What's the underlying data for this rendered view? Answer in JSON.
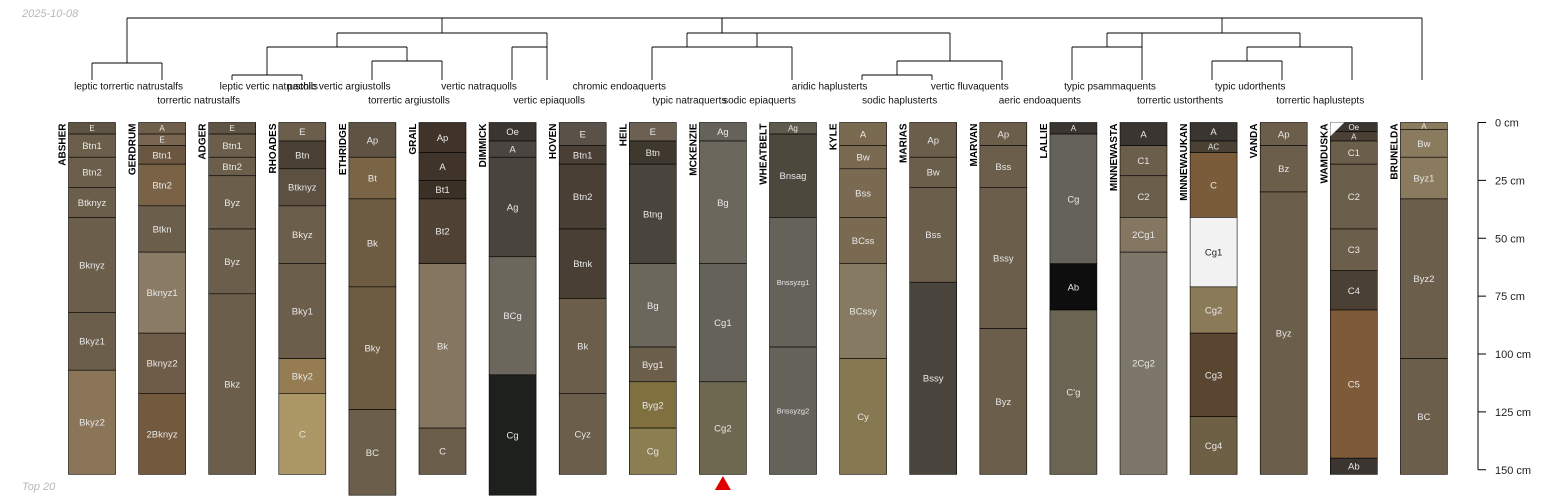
{
  "date": "2025-10-08",
  "footer": "Top 20",
  "axis": {
    "unit": "cm",
    "depth_max": 150,
    "ticks": [
      {
        "depth": 0,
        "label": "0 cm"
      },
      {
        "depth": 25,
        "label": "25 cm"
      },
      {
        "depth": 50,
        "label": "50 cm"
      },
      {
        "depth": 75,
        "label": "75 cm"
      },
      {
        "depth": 100,
        "label": "100 cm"
      },
      {
        "depth": 125,
        "label": "125 cm"
      },
      {
        "depth": 150,
        "label": "150 cm"
      }
    ]
  },
  "marker": {
    "profile": "MCKENZIE",
    "color": "#e00000"
  },
  "profiles": [
    {
      "name": "ABSHER",
      "horizons": [
        {
          "name": "E",
          "top": 0,
          "bottom": 5,
          "color": "#5f5444"
        },
        {
          "name": "Btn1",
          "top": 5,
          "bottom": 15,
          "color": "#6b5e4a"
        },
        {
          "name": "Btn2",
          "top": 15,
          "bottom": 28,
          "color": "#6b5e4a"
        },
        {
          "name": "Btknyz",
          "top": 28,
          "bottom": 41,
          "color": "#6b5e4a"
        },
        {
          "name": "Bknyz",
          "top": 41,
          "bottom": 82,
          "color": "#6b5e4a"
        },
        {
          "name": "Bkyz1",
          "top": 82,
          "bottom": 107,
          "color": "#6b5e4a"
        },
        {
          "name": "Bkyz2",
          "top": 107,
          "bottom": 152,
          "color": "#8b7558"
        }
      ]
    },
    {
      "name": "GERDRUM",
      "horizons": [
        {
          "name": "A",
          "top": 0,
          "bottom": 5,
          "color": "#6f5e4a"
        },
        {
          "name": "E",
          "top": 5,
          "bottom": 10,
          "color": "#7a6650"
        },
        {
          "name": "Btn1",
          "top": 10,
          "bottom": 18,
          "color": "#6b5642"
        },
        {
          "name": "Btn2",
          "top": 18,
          "bottom": 36,
          "color": "#7a6246"
        },
        {
          "name": "Btkn",
          "top": 36,
          "bottom": 56,
          "color": "#6b5e4a"
        },
        {
          "name": "Bknyz1",
          "top": 56,
          "bottom": 91,
          "color": "#8a7b64"
        },
        {
          "name": "Bknyz2",
          "top": 91,
          "bottom": 117,
          "color": "#6e5c48"
        },
        {
          "name": "2Bknyz",
          "top": 117,
          "bottom": 152,
          "color": "#735a3e"
        }
      ]
    },
    {
      "name": "ADGER",
      "horizons": [
        {
          "name": "E",
          "top": 0,
          "bottom": 5,
          "color": "#5f5444"
        },
        {
          "name": "Btn1",
          "top": 5,
          "bottom": 15,
          "color": "#6b5e4a"
        },
        {
          "name": "Btn2",
          "top": 15,
          "bottom": 23,
          "color": "#6b5e4a"
        },
        {
          "name": "Byz",
          "top": 23,
          "bottom": 46,
          "color": "#6b5e4a"
        },
        {
          "name": "Byz",
          "top": 46,
          "bottom": 74,
          "color": "#6b5e4a"
        },
        {
          "name": "Bkz",
          "top": 74,
          "bottom": 152,
          "color": "#6b5e4a"
        }
      ]
    },
    {
      "name": "RHOADES",
      "horizons": [
        {
          "name": "E",
          "top": 0,
          "bottom": 8,
          "color": "#6b5e4a"
        },
        {
          "name": "Btn",
          "top": 8,
          "bottom": 20,
          "color": "#4a4034"
        },
        {
          "name": "Btknyz",
          "top": 20,
          "bottom": 36,
          "color": "#5c5040"
        },
        {
          "name": "Bkyz",
          "top": 36,
          "bottom": 61,
          "color": "#6b5e4a"
        },
        {
          "name": "Bky1",
          "top": 61,
          "bottom": 102,
          "color": "#6b5e4a"
        },
        {
          "name": "Bky2",
          "top": 102,
          "bottom": 117,
          "color": "#957c52"
        },
        {
          "name": "C",
          "top": 117,
          "bottom": 152,
          "color": "#ac9766"
        }
      ]
    },
    {
      "name": "ETHRIDGE",
      "horizons": [
        {
          "name": "Ap",
          "top": 0,
          "bottom": 15,
          "color": "#5f5444"
        },
        {
          "name": "Bt",
          "top": 15,
          "bottom": 33,
          "color": "#7a6446"
        },
        {
          "name": "Bk",
          "top": 33,
          "bottom": 71,
          "color": "#6e5c42"
        },
        {
          "name": "Bky",
          "top": 71,
          "bottom": 124,
          "color": "#6e5c42"
        },
        {
          "name": "BC",
          "top": 124,
          "bottom": 161,
          "color": "#6b5e4a"
        }
      ]
    },
    {
      "name": "GRAIL",
      "horizons": [
        {
          "name": "Ap",
          "top": 0,
          "bottom": 13,
          "color": "#40342a"
        },
        {
          "name": "A",
          "top": 13,
          "bottom": 25,
          "color": "#40342a"
        },
        {
          "name": "Bt1",
          "top": 25,
          "bottom": 33,
          "color": "#3a3026"
        },
        {
          "name": "Bt2",
          "top": 33,
          "bottom": 61,
          "color": "#4f4234"
        },
        {
          "name": "Bk",
          "top": 61,
          "bottom": 132,
          "color": "#847660"
        },
        {
          "name": "C",
          "top": 132,
          "bottom": 152,
          "color": "#6b5e4a"
        }
      ]
    },
    {
      "name": "DIMMICK",
      "horizons": [
        {
          "name": "Oe",
          "top": 0,
          "bottom": 8,
          "color": "#3a3530"
        },
        {
          "name": "A",
          "top": 8,
          "bottom": 15,
          "color": "#4a4540"
        },
        {
          "name": "Ag",
          "top": 15,
          "bottom": 58,
          "color": "#4a453c"
        },
        {
          "name": "BCg",
          "top": 58,
          "bottom": 109,
          "color": "#6b675c"
        },
        {
          "name": "Cg",
          "top": 109,
          "bottom": 161,
          "color": "#1e201e"
        }
      ]
    },
    {
      "name": "HOVEN",
      "horizons": [
        {
          "name": "E",
          "top": 0,
          "bottom": 10,
          "color": "#5a5248"
        },
        {
          "name": "Btn1",
          "top": 10,
          "bottom": 18,
          "color": "#4a3f35"
        },
        {
          "name": "Btn2",
          "top": 18,
          "bottom": 46,
          "color": "#4a3f35"
        },
        {
          "name": "Btnk",
          "top": 46,
          "bottom": 76,
          "color": "#4a3f35"
        },
        {
          "name": "Bk",
          "top": 76,
          "bottom": 117,
          "color": "#6b5e4a"
        },
        {
          "name": "Cyz",
          "top": 117,
          "bottom": 152,
          "color": "#6b5e4a"
        }
      ]
    },
    {
      "name": "HEIL",
      "horizons": [
        {
          "name": "E",
          "top": 0,
          "bottom": 8,
          "color": "#6b6052"
        },
        {
          "name": "Btn",
          "top": 8,
          "bottom": 18,
          "color": "#3e382e"
        },
        {
          "name": "Btng",
          "top": 18,
          "bottom": 61,
          "color": "#4a453c"
        },
        {
          "name": "Bg",
          "top": 61,
          "bottom": 97,
          "color": "#6b675c"
        },
        {
          "name": "Byg1",
          "top": 97,
          "bottom": 112,
          "color": "#6b5e4a"
        },
        {
          "name": "Byg2",
          "top": 112,
          "bottom": 132,
          "color": "#807040"
        },
        {
          "name": "Cg",
          "top": 132,
          "bottom": 152,
          "color": "#8b7e50"
        }
      ]
    },
    {
      "name": "MCKENZIE",
      "horizons": [
        {
          "name": "Ag",
          "top": 0,
          "bottom": 8,
          "color": "#65625a"
        },
        {
          "name": "Bg",
          "top": 8,
          "bottom": 61,
          "color": "#6b675c"
        },
        {
          "name": "Cg1",
          "top": 61,
          "bottom": 112,
          "color": "#65625a"
        },
        {
          "name": "Cg2",
          "top": 112,
          "bottom": 152,
          "color": "#6e6850"
        }
      ]
    },
    {
      "name": "WHEATBELT",
      "horizons": [
        {
          "name": "Ag",
          "top": 0,
          "bottom": 5,
          "color": "#5f5a4e"
        },
        {
          "name": "Bnsag",
          "top": 5,
          "bottom": 41,
          "color": "#4c483e"
        },
        {
          "name": "Bnssyzg1",
          "top": 41,
          "bottom": 97,
          "color": "#65625a"
        },
        {
          "name": "Bnssyzg2",
          "top": 97,
          "bottom": 152,
          "color": "#65625a"
        }
      ]
    },
    {
      "name": "KYLE",
      "horizons": [
        {
          "name": "A",
          "top": 0,
          "bottom": 10,
          "color": "#7a6a52"
        },
        {
          "name": "Bw",
          "top": 10,
          "bottom": 20,
          "color": "#7a6a52"
        },
        {
          "name": "Bss",
          "top": 20,
          "bottom": 41,
          "color": "#7a6a52"
        },
        {
          "name": "BCss",
          "top": 41,
          "bottom": 61,
          "color": "#7a6a52"
        },
        {
          "name": "BCssy",
          "top": 61,
          "bottom": 102,
          "color": "#867a62"
        },
        {
          "name": "Cy",
          "top": 102,
          "bottom": 152,
          "color": "#867850"
        }
      ]
    },
    {
      "name": "MARIAS",
      "horizons": [
        {
          "name": "Ap",
          "top": 0,
          "bottom": 15,
          "color": "#6b5e4a"
        },
        {
          "name": "Bw",
          "top": 15,
          "bottom": 28,
          "color": "#6b5e4a"
        },
        {
          "name": "Bss",
          "top": 28,
          "bottom": 69,
          "color": "#6b5e4a"
        },
        {
          "name": "Bssy",
          "top": 69,
          "bottom": 152,
          "color": "#4a453c"
        }
      ]
    },
    {
      "name": "MARVAN",
      "horizons": [
        {
          "name": "Ap",
          "top": 0,
          "bottom": 10,
          "color": "#6b5e4a"
        },
        {
          "name": "Bss",
          "top": 10,
          "bottom": 28,
          "color": "#6b5e4a"
        },
        {
          "name": "Bssy",
          "top": 28,
          "bottom": 89,
          "color": "#6b5e4a"
        },
        {
          "name": "Byz",
          "top": 89,
          "bottom": 152,
          "color": "#6b5e4a"
        }
      ]
    },
    {
      "name": "LALLIE",
      "horizons": [
        {
          "name": "A",
          "top": 0,
          "bottom": 5,
          "color": "#3a3530"
        },
        {
          "name": "Cg",
          "top": 5,
          "bottom": 61,
          "color": "#65625a"
        },
        {
          "name": "Ab",
          "top": 61,
          "bottom": 81,
          "color": "#0e0e0e"
        },
        {
          "name": "C'g",
          "top": 81,
          "bottom": 152,
          "color": "#6b6452"
        }
      ]
    },
    {
      "name": "MINNEWASTA",
      "horizons": [
        {
          "name": "A",
          "top": 0,
          "bottom": 10,
          "color": "#3a3530"
        },
        {
          "name": "C1",
          "top": 10,
          "bottom": 23,
          "color": "#6b5e4a"
        },
        {
          "name": "C2",
          "top": 23,
          "bottom": 41,
          "color": "#6b5e4a"
        },
        {
          "name": "2Cg1",
          "top": 41,
          "bottom": 56,
          "color": "#847660"
        },
        {
          "name": "2Cg2",
          "top": 56,
          "bottom": 152,
          "color": "#7d776a"
        }
      ]
    },
    {
      "name": "MINNEWAUKAN",
      "horizons": [
        {
          "name": "A",
          "top": 0,
          "bottom": 8,
          "color": "#3a3530"
        },
        {
          "name": "AC",
          "top": 8,
          "bottom": 13,
          "color": "#4a4034"
        },
        {
          "name": "C",
          "top": 13,
          "bottom": 41,
          "color": "#7a5c3a"
        },
        {
          "name": "Cg1",
          "top": 41,
          "bottom": 71,
          "color": "#f2f2f2"
        },
        {
          "name": "Cg2",
          "top": 71,
          "bottom": 91,
          "color": "#8b7a58"
        },
        {
          "name": "Cg3",
          "top": 91,
          "bottom": 127,
          "color": "#5a4630"
        },
        {
          "name": "Cg4",
          "top": 127,
          "bottom": 152,
          "color": "#6e6044"
        }
      ]
    },
    {
      "name": "VANDA",
      "horizons": [
        {
          "name": "Ap",
          "top": 0,
          "bottom": 10,
          "color": "#6b5e4a"
        },
        {
          "name": "Bz",
          "top": 10,
          "bottom": 30,
          "color": "#6b5e4a"
        },
        {
          "name": "Byz",
          "top": 30,
          "bottom": 152,
          "color": "#6b5e4a"
        }
      ]
    },
    {
      "name": "WAMDUSKA",
      "horizons": [
        {
          "name": "Oe",
          "top": 0,
          "bottom": 4,
          "color": "#3a3530"
        },
        {
          "name": "A",
          "top": 4,
          "bottom": 8,
          "color": "#4a4034"
        },
        {
          "name": "C1",
          "top": 8,
          "bottom": 18,
          "color": "#6b5e4a"
        },
        {
          "name": "C2",
          "top": 18,
          "bottom": 46,
          "color": "#6b5e4a"
        },
        {
          "name": "C3",
          "top": 46,
          "bottom": 64,
          "color": "#6b5e4a"
        },
        {
          "name": "C4",
          "top": 64,
          "bottom": 81,
          "color": "#4a4034"
        },
        {
          "name": "C5",
          "top": 81,
          "bottom": 145,
          "color": "#7e5a38"
        },
        {
          "name": "Ab",
          "top": 145,
          "bottom": 152,
          "color": "#3a3530"
        }
      ]
    },
    {
      "name": "BRUNELDA",
      "horizons": [
        {
          "name": "A",
          "top": 0,
          "bottom": 3,
          "color": "#8a7a5e"
        },
        {
          "name": "Bw",
          "top": 3,
          "bottom": 15,
          "color": "#8a7a5e"
        },
        {
          "name": "Byz1",
          "top": 15,
          "bottom": 33,
          "color": "#8a7a5e"
        },
        {
          "name": "Byz2",
          "top": 33,
          "bottom": 102,
          "color": "#6b5e4a"
        },
        {
          "name": "BC",
          "top": 102,
          "bottom": 152,
          "color": "#6b5e4a"
        }
      ]
    }
  ],
  "taxa": [
    {
      "label": "leptic torrertic natrustalfs",
      "row": 1
    },
    {
      "label": "torrertic natrustalfs",
      "row": 2
    },
    {
      "label": "leptic vertic natrustolls",
      "row": 1
    },
    {
      "label": "pachic vertic argiustolls",
      "row": 1
    },
    {
      "label": "torrertic argiustolls",
      "row": 2
    },
    {
      "label": "vertic natraquolls",
      "row": 1
    },
    {
      "label": "vertic epiaquolls",
      "row": 2
    },
    {
      "label": "chromic endoaquerts",
      "row": 1
    },
    {
      "label": "typic natraquerts",
      "row": 2
    },
    {
      "label": "sodic epiaquerts",
      "row": 2
    },
    {
      "label": "aridic haplusterts",
      "row": 1
    },
    {
      "label": "sodic haplusterts",
      "row": 2
    },
    {
      "label": "vertic fluvaquents",
      "row": 1
    },
    {
      "label": "aeric endoaquents",
      "row": 2
    },
    {
      "label": "typic psammaquents",
      "row": 1
    },
    {
      "label": "torrertic ustorthents",
      "row": 2
    },
    {
      "label": "typic udorthents",
      "row": 1
    },
    {
      "label": "torrertic haplustepts",
      "row": 2
    }
  ]
}
